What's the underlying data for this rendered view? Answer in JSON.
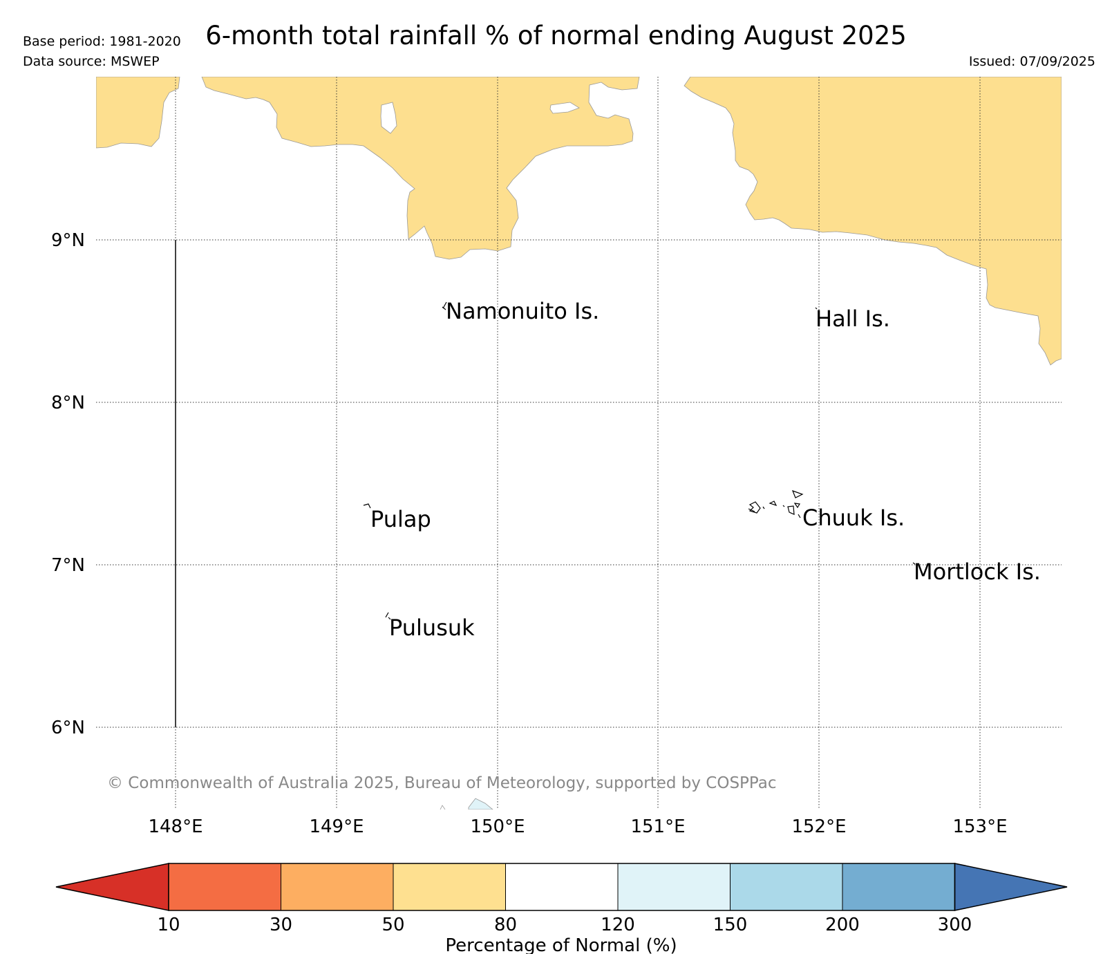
{
  "header": {
    "title": "6-month total rainfall % of normal ending August 2025",
    "base_period": "Base period: 1981-2020",
    "data_source": "Data source: MSWEP",
    "issued": "Issued: 07/09/2025"
  },
  "map": {
    "lat_labels": [
      "9°N",
      "8°N",
      "7°N",
      "6°N"
    ],
    "lon_labels": [
      "148°E",
      "149°E",
      "150°E",
      "151°E",
      "152°E",
      "153°E"
    ],
    "places": [
      "Namonuito Is.",
      "Hall Is.",
      "Pulap",
      "Chuuk Is.",
      "Mortlock Is.",
      "Pulusuk"
    ],
    "copyright": "© Commonwealth of Australia 2025, Bureau of Meteorology, supported by COSPPac",
    "land_fill_category": "50-80",
    "land_color": "#fddf8f"
  },
  "colorbar": {
    "label": "Percentage of Normal (%)",
    "ticks": [
      "10",
      "30",
      "50",
      "80",
      "120",
      "150",
      "200",
      "300"
    ],
    "colors": [
      "#d73027",
      "#f46d43",
      "#fdae61",
      "#fee090",
      "#ffffff",
      "#e0f3f8",
      "#abd9e9",
      "#74add1",
      "#4575b4"
    ]
  }
}
